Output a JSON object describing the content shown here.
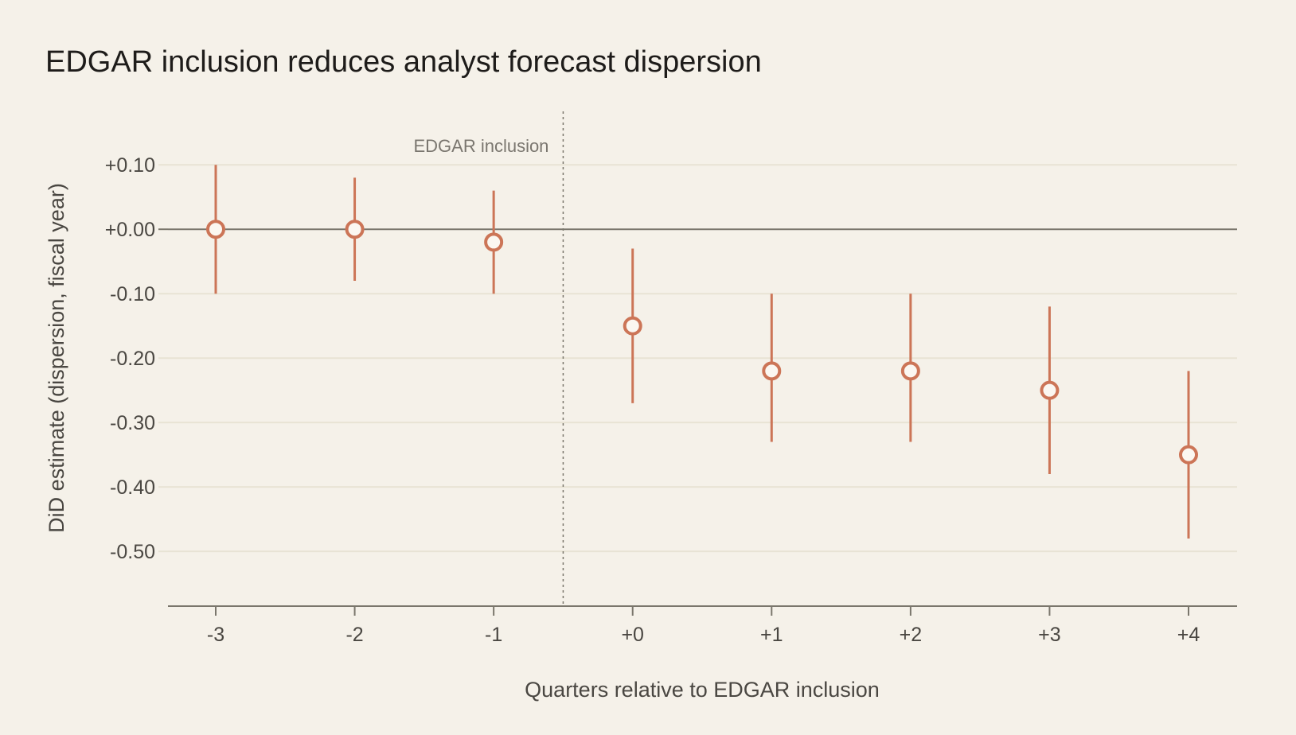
{
  "chart_data": {
    "type": "scatter",
    "title": "EDGAR inclusion reduces analyst forecast dispersion",
    "xlabel": "Quarters relative to EDGAR inclusion",
    "ylabel": "DiD estimate (dispersion, fiscal year)",
    "categories": [
      "-3",
      "-2",
      "-1",
      "+0",
      "+1",
      "+2",
      "+3",
      "+4"
    ],
    "values": [
      0.0,
      0.0,
      -0.02,
      -0.15,
      -0.22,
      -0.22,
      -0.25,
      -0.35
    ],
    "ci_low": [
      -0.1,
      -0.08,
      -0.1,
      -0.27,
      -0.33,
      -0.33,
      -0.38,
      -0.48
    ],
    "ci_high": [
      0.1,
      0.08,
      0.06,
      -0.03,
      -0.1,
      -0.1,
      -0.12,
      -0.22
    ],
    "yticks": [
      0.1,
      0.0,
      -0.1,
      -0.2,
      -0.3,
      -0.4,
      -0.5
    ],
    "ytick_labels": [
      "+0.10",
      "+0.00",
      "-0.10",
      "-0.20",
      "-0.30",
      "-0.40",
      "-0.50"
    ],
    "ylim": [
      -0.585,
      0.183
    ],
    "grid": true,
    "annotation": {
      "label": "EDGAR inclusion",
      "between": [
        "-1",
        "+0"
      ]
    },
    "colors": {
      "marker": "#cc7557",
      "background": "#f5f1e9",
      "grid": "#e8e3d4",
      "zero_line": "#7a766c"
    }
  }
}
